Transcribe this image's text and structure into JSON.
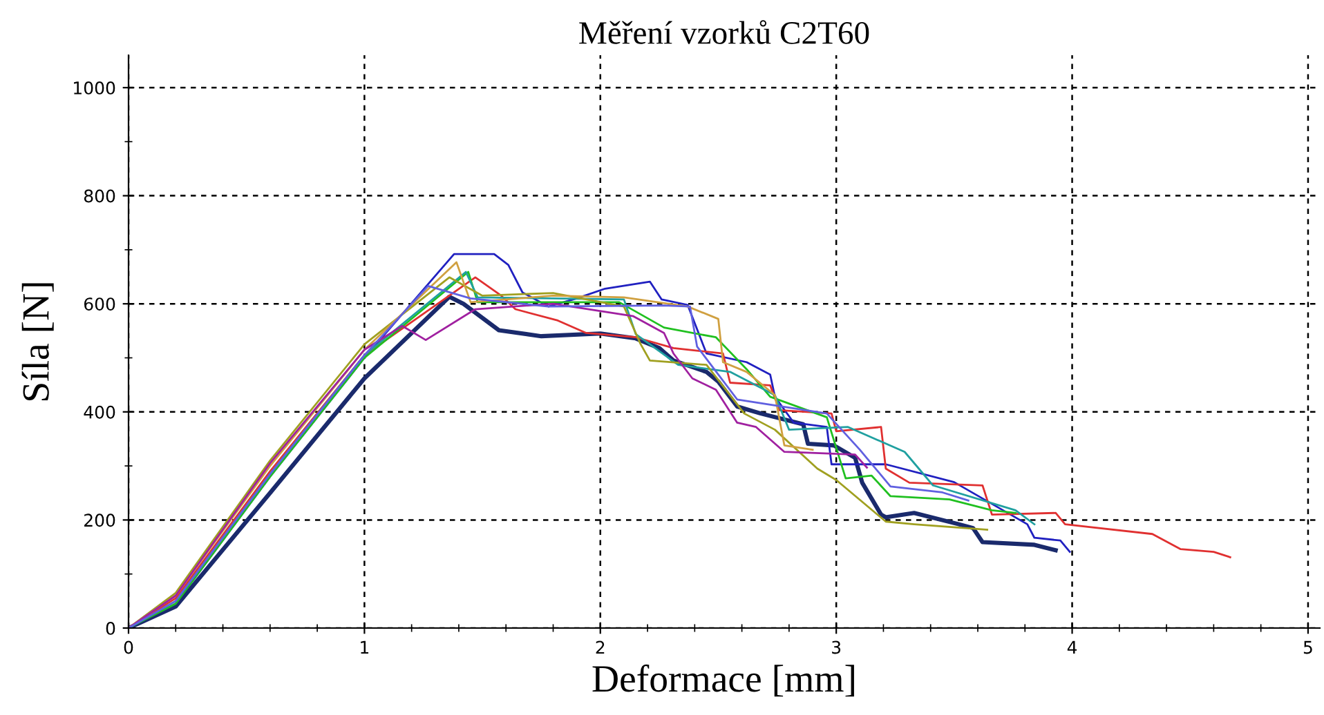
{
  "chart_data": {
    "type": "line",
    "title": "Měření vzorků C2T60",
    "xlabel": "Deformace [mm]",
    "ylabel": "Síla [N]",
    "xlim": [
      0,
      5.05
    ],
    "ylim": [
      0,
      1060
    ],
    "xticks": [
      0,
      {
        "value": 0.2,
        "label": null
      },
      {
        "value": 0.4,
        "label": null
      },
      {
        "value": 0.6,
        "label": null
      },
      {
        "value": 0.8,
        "label": null
      },
      1,
      {
        "value": 1.2,
        "label": null
      },
      {
        "value": 1.4,
        "label": null
      },
      {
        "value": 1.6,
        "label": null
      },
      {
        "value": 1.8,
        "label": null
      },
      2,
      {
        "value": 2.2,
        "label": null
      },
      {
        "value": 2.4,
        "label": null
      },
      {
        "value": 2.6,
        "label": null
      },
      {
        "value": 2.8,
        "label": null
      },
      3,
      {
        "value": 3.2,
        "label": null
      },
      {
        "value": 3.4,
        "label": null
      },
      {
        "value": 3.6,
        "label": null
      },
      {
        "value": 3.8,
        "label": null
      },
      4,
      {
        "value": 4.2,
        "label": null
      },
      {
        "value": 4.4,
        "label": null
      },
      {
        "value": 4.6,
        "label": null
      },
      {
        "value": 4.8,
        "label": null
      },
      5
    ],
    "yticks": [
      0,
      {
        "value": 100,
        "label": null
      },
      200,
      {
        "value": 300,
        "label": null
      },
      400,
      {
        "value": 500,
        "label": null
      },
      600,
      {
        "value": 700,
        "label": null
      },
      800,
      {
        "value": 900,
        "label": null
      },
      1000
    ],
    "grid": true,
    "marker": "none",
    "line_style": "solid",
    "series": [
      {
        "color": "#1a2a6c",
        "x": [
          0,
          0.2,
          0.6,
          1.0,
          1.36,
          1.42,
          1.57,
          1.75,
          2.0,
          2.15,
          2.25,
          2.31,
          2.45,
          2.5,
          2.58,
          2.68,
          2.86,
          2.88,
          2.99,
          3.08,
          3.11,
          3.19,
          3.21,
          3.33,
          3.52,
          3.58,
          3.62,
          3.84,
          3.93
        ],
        "values": [
          0,
          40,
          250,
          462,
          613,
          600,
          551,
          540,
          545,
          536,
          518,
          495,
          474,
          456,
          410,
          397,
          377,
          341,
          338,
          315,
          269,
          210,
          205,
          213,
          192,
          185,
          159,
          154,
          144
        ]
      },
      {
        "color": "#2020c0",
        "x": [
          0,
          0.2,
          0.6,
          1.0,
          1.38,
          1.55,
          1.61,
          1.67,
          1.78,
          1.9,
          2.02,
          2.21,
          2.26,
          2.37,
          2.45,
          2.62,
          2.72,
          2.74,
          2.82,
          2.96,
          2.98,
          3.15,
          3.21,
          3.5,
          3.81,
          3.84,
          3.95,
          3.99
        ],
        "values": [
          0,
          45,
          280,
          500,
          692,
          692,
          672,
          621,
          595,
          610,
          628,
          641,
          608,
          598,
          508,
          492,
          469,
          428,
          380,
          372,
          303,
          303,
          303,
          270,
          192,
          167,
          162,
          141
        ]
      },
      {
        "color": "#e03030",
        "x": [
          0,
          0.2,
          0.6,
          1.0,
          1.47,
          1.58,
          1.64,
          1.82,
          1.94,
          2.15,
          2.31,
          2.52,
          2.55,
          2.72,
          2.76,
          2.98,
          3.0,
          3.19,
          3.21,
          3.31,
          3.62,
          3.66,
          3.93,
          3.97,
          4.34,
          4.46,
          4.6,
          4.67
        ],
        "values": [
          0,
          55,
          290,
          505,
          649,
          615,
          590,
          569,
          546,
          538,
          518,
          508,
          454,
          449,
          403,
          397,
          364,
          372,
          295,
          269,
          264,
          210,
          213,
          192,
          174,
          146,
          141,
          131
        ]
      },
      {
        "color": "#20c020",
        "x": [
          0,
          0.2,
          0.6,
          1.0,
          1.44,
          1.48,
          1.78,
          2.08,
          2.27,
          2.49,
          2.62,
          2.72,
          2.96,
          3.04,
          3.15,
          3.23,
          3.48,
          3.66,
          3.76
        ],
        "values": [
          0,
          45,
          280,
          500,
          659,
          603,
          603,
          603,
          556,
          538,
          479,
          428,
          390,
          277,
          282,
          244,
          238,
          218,
          213
        ]
      },
      {
        "color": "#20a0a0",
        "x": [
          0,
          0.2,
          0.6,
          1.0,
          1.43,
          1.48,
          1.8,
          2.1,
          2.15,
          2.33,
          2.55,
          2.74,
          2.8,
          3.05,
          3.29,
          3.35,
          3.41,
          3.76,
          3.84
        ],
        "values": [
          0,
          50,
          285,
          505,
          659,
          612,
          610,
          608,
          544,
          487,
          474,
          431,
          367,
          372,
          326,
          295,
          264,
          218,
          192
        ]
      },
      {
        "color": "#a0a020",
        "x": [
          0,
          0.2,
          0.6,
          1.0,
          1.36,
          1.5,
          1.8,
          2.1,
          2.17,
          2.21,
          2.45,
          2.61,
          2.74,
          2.92,
          3.0,
          3.21,
          3.33,
          3.64
        ],
        "values": [
          0,
          65,
          310,
          525,
          649,
          615,
          620,
          595,
          526,
          495,
          487,
          397,
          367,
          295,
          274,
          197,
          192,
          182
        ]
      },
      {
        "color": "#d0a040",
        "x": [
          0,
          0.2,
          0.6,
          1.0,
          1.39,
          1.45,
          1.8,
          2.1,
          2.37,
          2.5,
          2.52,
          2.62,
          2.74,
          2.78,
          2.9
        ],
        "values": [
          0,
          60,
          300,
          515,
          677,
          603,
          615,
          612,
          595,
          572,
          492,
          474,
          431,
          338,
          330
        ]
      },
      {
        "color": "#a020a0",
        "x": [
          0,
          0.2,
          0.6,
          1.0,
          1.16,
          1.26,
          1.47,
          1.8,
          2.14,
          2.27,
          2.31,
          2.39,
          2.49,
          2.58,
          2.66,
          2.78,
          3.08,
          3.13
        ],
        "values": [
          0,
          60,
          305,
          515,
          559,
          533,
          590,
          600,
          577,
          546,
          508,
          462,
          441,
          380,
          372,
          326,
          321,
          297
        ]
      },
      {
        "color": "#6060e0",
        "x": [
          0,
          0.2,
          0.6,
          1.0,
          1.27,
          1.45,
          1.78,
          2.27,
          2.38,
          2.41,
          2.58,
          2.96,
          3.1,
          3.23,
          3.45,
          3.56
        ],
        "values": [
          0,
          50,
          285,
          505,
          633,
          610,
          595,
          597,
          595,
          521,
          423,
          397,
          330,
          262,
          251,
          236
        ]
      }
    ]
  }
}
